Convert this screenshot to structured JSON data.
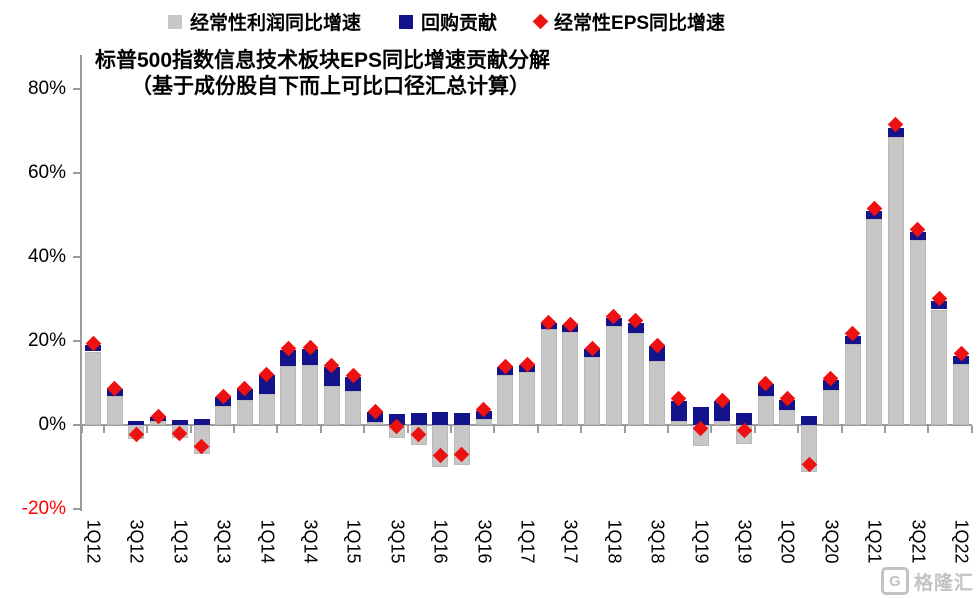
{
  "legend": [
    {
      "label": "经常性利润同比增速",
      "marker": "square",
      "color": "#c7c7c7"
    },
    {
      "label": "回购贡献",
      "marker": "square",
      "color": "#13138b"
    },
    {
      "label": "经常性EPS同比增速",
      "marker": "diamond",
      "color": "#ee1111"
    }
  ],
  "title": {
    "line1": "标普500指数信息技术板块EPS同比增速贡献分解",
    "line2": "（基于成份股自下而上可比口径汇总计算）"
  },
  "watermark": {
    "text": "格隆汇",
    "logo_letter": "G"
  },
  "colors": {
    "profit_bar": "#c7c7c7",
    "profit_bar_border": "#b9b9b9",
    "buyback_bar": "#13138b",
    "eps_diamond": "#ee1111",
    "axis": "#9c9c9c",
    "negative_tick_label": "#ff0000"
  },
  "chart_data": {
    "type": "bar",
    "stacked": true,
    "title": "标普500指数信息技术板块EPS同比增速贡献分解（基于成份股自下而上可比口径汇总计算）",
    "legend_position": "top",
    "grid": false,
    "ylim": [
      -20,
      88
    ],
    "ytick_values": [
      80,
      60,
      40,
      20,
      0,
      -20
    ],
    "ytick_labels": [
      "80%",
      "60%",
      "40%",
      "20%",
      "0%",
      "-20%"
    ],
    "x_tick_labels": [
      "1Q12",
      "3Q12",
      "1Q13",
      "3Q13",
      "1Q14",
      "3Q14",
      "1Q15",
      "3Q15",
      "1Q16",
      "3Q16",
      "1Q17",
      "3Q17",
      "1Q18",
      "3Q18",
      "1Q19",
      "3Q19",
      "1Q20",
      "3Q20",
      "1Q21",
      "3Q21",
      "1Q22"
    ],
    "categories": [
      "1Q12",
      "2Q12",
      "3Q12",
      "4Q12",
      "1Q13",
      "2Q13",
      "3Q13",
      "4Q13",
      "1Q14",
      "2Q14",
      "3Q14",
      "4Q14",
      "1Q15",
      "2Q15",
      "3Q15",
      "4Q15",
      "1Q16",
      "2Q16",
      "3Q16",
      "4Q16",
      "1Q17",
      "2Q17",
      "3Q17",
      "4Q17",
      "1Q18",
      "2Q18",
      "3Q18",
      "4Q18",
      "1Q19",
      "2Q19",
      "3Q19",
      "4Q19",
      "1Q20",
      "2Q20",
      "3Q20",
      "4Q20",
      "1Q21",
      "2Q21",
      "3Q21",
      "4Q21",
      "1Q22"
    ],
    "series": [
      {
        "name": "经常性利润同比增速",
        "type": "bar",
        "color": "#c7c7c7",
        "values": [
          17.5,
          7.0,
          -3.3,
          1.0,
          -3.2,
          -6.8,
          4.6,
          6.0,
          7.4,
          14.0,
          14.2,
          9.2,
          8.2,
          0.8,
          -3.2,
          -4.8,
          -10.0,
          -9.6,
          1.5,
          11.8,
          12.6,
          22.8,
          22.2,
          16.2,
          23.5,
          21.8,
          15.2,
          1.0,
          -4.9,
          1.0,
          -4.6,
          7.0,
          3.5,
          -11.2,
          8.3,
          19.2,
          49.0,
          68.6,
          44.0,
          27.5,
          14.5
        ]
      },
      {
        "name": "回购贡献",
        "type": "bar",
        "color": "#13138b",
        "values": [
          1.6,
          1.6,
          1.0,
          0.8,
          1.2,
          1.4,
          2.0,
          2.6,
          4.4,
          3.9,
          3.8,
          4.6,
          3.2,
          2.2,
          2.7,
          2.8,
          3.2,
          2.8,
          1.9,
          1.9,
          1.7,
          1.5,
          1.5,
          1.8,
          2.0,
          2.5,
          3.5,
          4.8,
          4.2,
          4.6,
          2.9,
          2.8,
          2.4,
          2.1,
          2.4,
          1.9,
          2.0,
          2.1,
          2.0,
          2.0,
          1.9
        ]
      },
      {
        "name": "经常性EPS同比增速",
        "type": "scatter",
        "marker": "diamond",
        "color": "#ee1111",
        "values": [
          19.3,
          8.8,
          -2.3,
          2.0,
          -2.1,
          -5.2,
          6.8,
          8.8,
          12.0,
          18.2,
          18.5,
          14.2,
          11.8,
          3.2,
          -0.4,
          -2.2,
          -7.2,
          -7.0,
          3.6,
          14.0,
          14.4,
          24.4,
          24.0,
          18.3,
          25.8,
          24.8,
          19.0,
          6.2,
          -0.8,
          5.8,
          -1.4,
          10.0,
          6.2,
          -9.4,
          11.0,
          21.8,
          51.5,
          71.5,
          46.5,
          30.2,
          17.0
        ]
      }
    ]
  }
}
